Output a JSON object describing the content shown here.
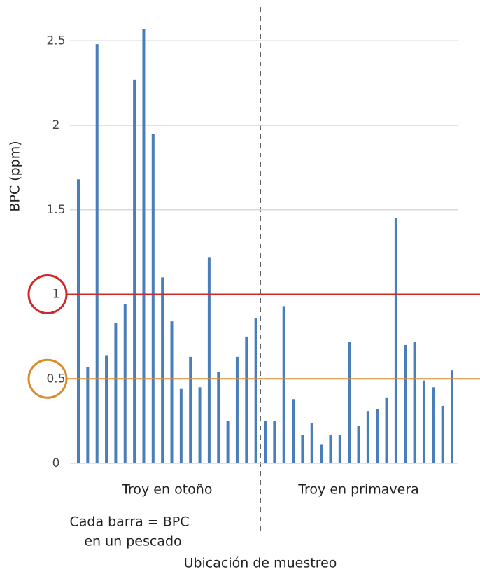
{
  "chart_data": {
    "type": "bar",
    "y_label": "BPC (ppm)",
    "x_label": "Ubicación de muestreo",
    "annotation": [
      "Cada barra = BPC",
      "en un pescado"
    ],
    "groups": [
      {
        "label": "Troy en otoño",
        "values": [
          1.68,
          0.57,
          2.48,
          0.64,
          0.83,
          0.94,
          2.27,
          2.57,
          1.95,
          1.1,
          0.84,
          0.44,
          0.63,
          0.45,
          1.22,
          0.54,
          0.25,
          0.63,
          0.75,
          0.86
        ]
      },
      {
        "label": "Troy en primavera",
        "values": [
          0.25,
          0.25,
          0.93,
          0.38,
          0.17,
          0.24,
          0.11,
          0.17,
          0.17,
          0.72,
          0.22,
          0.31,
          0.32,
          0.39,
          1.45,
          0.7,
          0.72,
          0.49,
          0.45,
          0.34,
          0.55
        ]
      }
    ],
    "color": "#4a7ebb",
    "ylim": [
      0,
      2.7
    ],
    "yticks": [
      0,
      0.5,
      1,
      1.5,
      2,
      2.5
    ],
    "grid": true,
    "reference_lines": [
      {
        "value": 1,
        "color": "#cc2a2a"
      },
      {
        "value": 0.5,
        "color": "#d98a2a"
      }
    ]
  }
}
